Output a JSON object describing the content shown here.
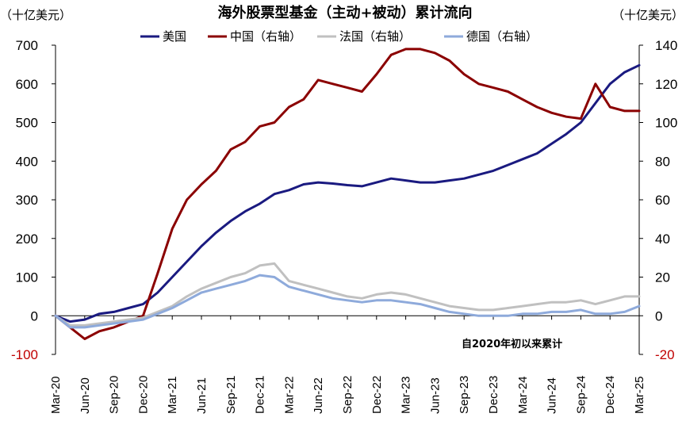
{
  "chart_data": {
    "type": "line",
    "title": "海外股票型基金（主动+被动）累计流向",
    "left_unit": "（十亿美元）",
    "right_unit": "（十亿美元）",
    "annotation": "自2020年初以来累计",
    "x_ticks": [
      "Mar-20",
      "Jun-20",
      "Sep-20",
      "Dec-20",
      "Mar-21",
      "Jun-21",
      "Sep-21",
      "Dec-21",
      "Mar-22",
      "Jun-22",
      "Sep-22",
      "Dec-22",
      "Mar-23",
      "Jun-23",
      "Sep-23",
      "Dec-23",
      "Mar-24",
      "Jun-24",
      "Sep-24",
      "Dec-24",
      "Mar-25"
    ],
    "y_left": {
      "min": -100,
      "max": 700,
      "ticks": [
        -100,
        0,
        100,
        200,
        300,
        400,
        500,
        600,
        700
      ]
    },
    "y_right": {
      "min": -20,
      "max": 140,
      "ticks": [
        -20,
        0,
        20,
        40,
        60,
        80,
        100,
        120,
        140
      ]
    },
    "grid": false,
    "legend_position": "top",
    "series": [
      {
        "name": "美国",
        "axis": "left",
        "color": "#1a1a80",
        "values": [
          0,
          -15,
          -10,
          5,
          10,
          20,
          30,
          60,
          100,
          140,
          180,
          215,
          245,
          270,
          290,
          315,
          325,
          340,
          345,
          342,
          338,
          335,
          345,
          355,
          350,
          345,
          345,
          350,
          355,
          365,
          375,
          390,
          405,
          420,
          445,
          470,
          500,
          550,
          600,
          630,
          648
        ]
      },
      {
        "name": "中国（右轴）",
        "axis": "right",
        "color": "#8b0000",
        "values": [
          0,
          -6,
          -12,
          -8,
          -6,
          -3,
          0,
          22,
          45,
          60,
          68,
          75,
          86,
          90,
          98,
          100,
          108,
          112,
          122,
          120,
          118,
          116,
          125,
          135,
          138,
          138,
          136,
          132,
          125,
          120,
          118,
          116,
          112,
          108,
          105,
          103,
          102,
          120,
          108,
          106,
          106
        ]
      },
      {
        "name": "法国（右轴）",
        "axis": "right",
        "color": "#c0c0c0",
        "values": [
          0,
          -5,
          -5,
          -4,
          -3,
          -2,
          -1,
          2,
          5,
          10,
          14,
          17,
          20,
          22,
          26,
          27,
          18,
          16,
          14,
          12,
          10,
          9,
          11,
          12,
          11,
          9,
          7,
          5,
          4,
          3,
          3,
          4,
          5,
          6,
          7,
          7,
          8,
          6,
          8,
          10,
          10
        ]
      },
      {
        "name": "德国（右轴）",
        "axis": "right",
        "color": "#8eaadb",
        "values": [
          0,
          -6,
          -6,
          -5,
          -4,
          -3,
          -2,
          1,
          4,
          8,
          12,
          14,
          16,
          18,
          21,
          20,
          15,
          13,
          11,
          9,
          8,
          7,
          8,
          8,
          7,
          6,
          4,
          2,
          1,
          0,
          0,
          0,
          1,
          1,
          2,
          2,
          3,
          1,
          1,
          2,
          5
        ]
      }
    ]
  }
}
